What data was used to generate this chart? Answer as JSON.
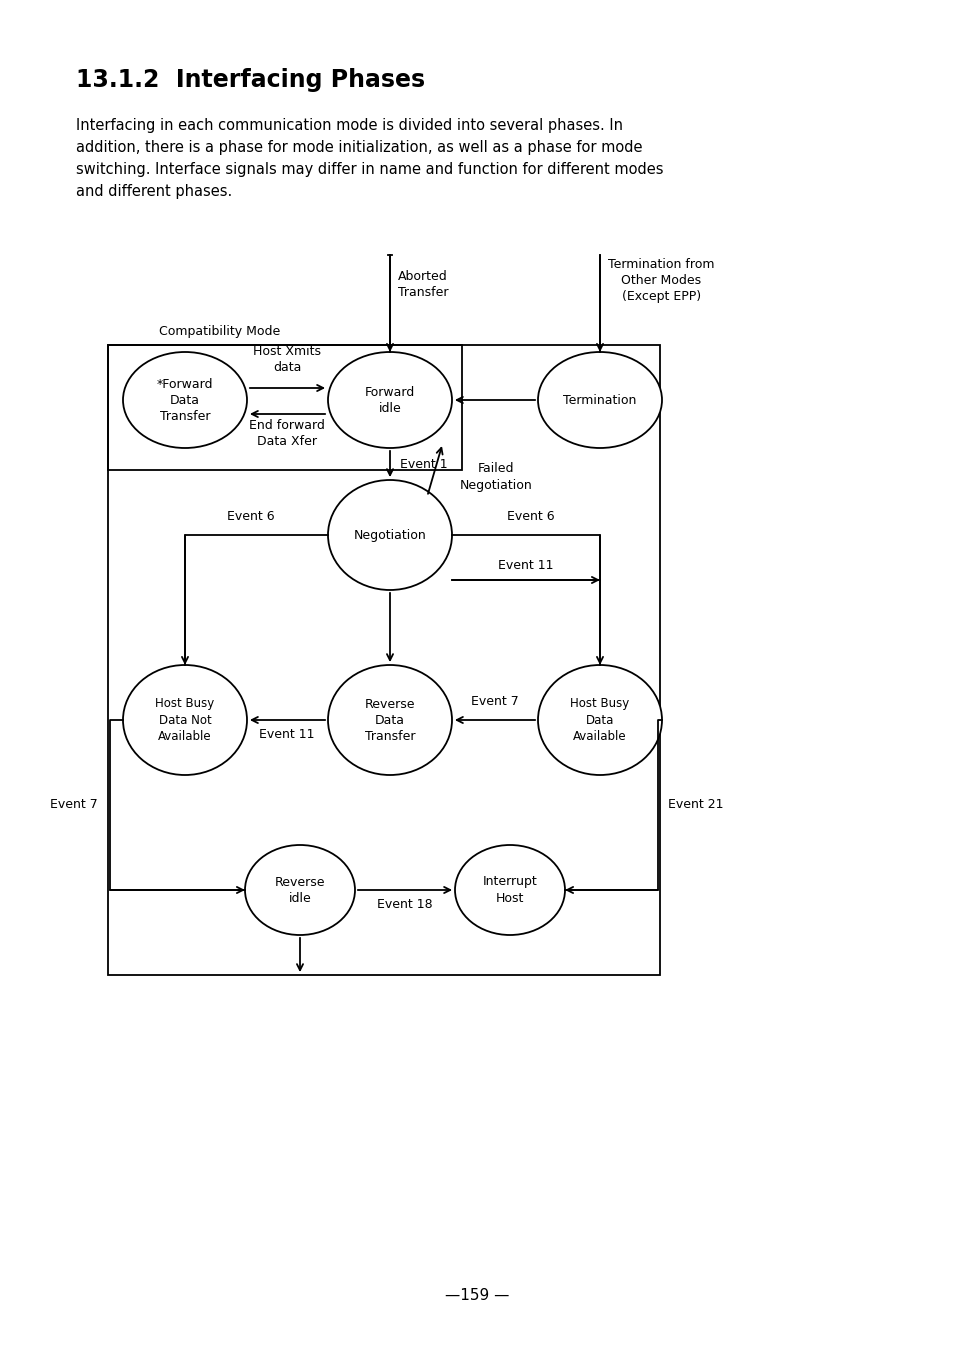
{
  "title": "13.1.2  Interfacing Phases",
  "body_line1": "Interfacing in each communication mode is divided into several phases. In",
  "body_line2": "addition, there is a phase for mode initialization, as well as a phase for mode",
  "body_line3": "switching. Interface signals may differ in name and function for different modes",
  "body_line4": "and different phases.",
  "page_number": "—159 —",
  "bg_color": "#ffffff"
}
